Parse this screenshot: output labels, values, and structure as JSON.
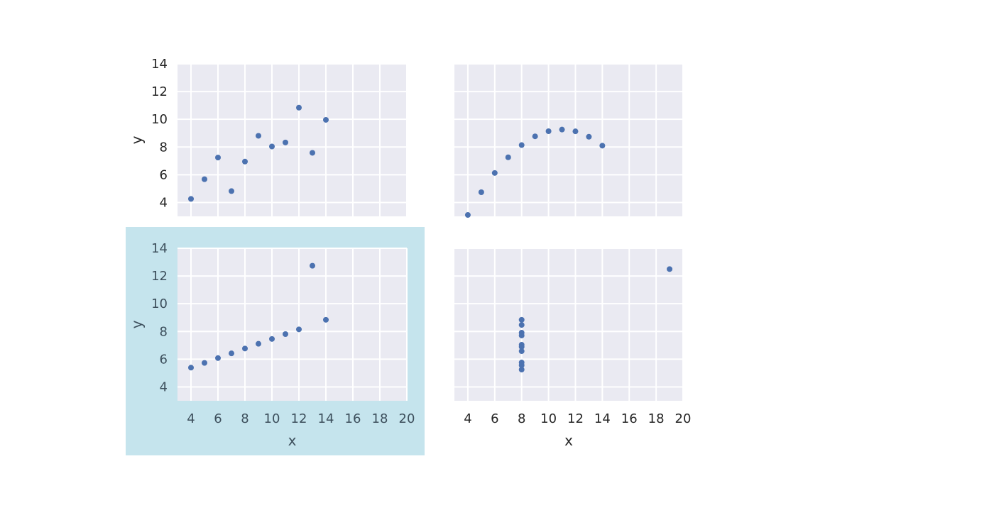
{
  "chart_data": [
    {
      "type": "scatter",
      "panel": "top-left",
      "xlabel": "",
      "ylabel": "y",
      "xlim": [
        3,
        20
      ],
      "ylim": [
        3,
        14
      ],
      "x_ticks": [],
      "y_ticks": [
        4,
        6,
        8,
        10,
        12,
        14
      ],
      "grid": true,
      "selected": false,
      "points": {
        "x": [
          4,
          5,
          6,
          7,
          8,
          9,
          10,
          11,
          12,
          13,
          14
        ],
        "y": [
          4.26,
          5.68,
          7.24,
          4.82,
          6.95,
          8.81,
          8.04,
          8.33,
          10.84,
          7.58,
          9.96
        ]
      }
    },
    {
      "type": "scatter",
      "panel": "top-right",
      "xlabel": "",
      "ylabel": "",
      "xlim": [
        3,
        20
      ],
      "ylim": [
        3,
        14
      ],
      "x_ticks": [],
      "y_ticks": [],
      "grid": true,
      "selected": false,
      "points": {
        "x": [
          4,
          5,
          6,
          7,
          8,
          9,
          10,
          11,
          12,
          13,
          14
        ],
        "y": [
          3.1,
          4.74,
          6.13,
          7.26,
          8.14,
          8.77,
          9.14,
          9.26,
          9.13,
          8.74,
          8.1
        ]
      }
    },
    {
      "type": "scatter",
      "panel": "bottom-left",
      "xlabel": "x",
      "ylabel": "y",
      "xlim": [
        3,
        20
      ],
      "ylim": [
        3,
        14
      ],
      "x_ticks": [
        4,
        6,
        8,
        10,
        12,
        14,
        16,
        18,
        20
      ],
      "y_ticks": [
        4,
        6,
        8,
        10,
        12,
        14
      ],
      "grid": true,
      "selected": true,
      "points": {
        "x": [
          4,
          5,
          6,
          7,
          8,
          9,
          10,
          11,
          12,
          13,
          14
        ],
        "y": [
          5.39,
          5.73,
          6.08,
          6.42,
          6.77,
          7.11,
          7.46,
          7.81,
          8.15,
          12.74,
          8.84
        ]
      }
    },
    {
      "type": "scatter",
      "panel": "bottom-right",
      "xlabel": "x",
      "ylabel": "",
      "xlim": [
        3,
        20
      ],
      "ylim": [
        3,
        14
      ],
      "x_ticks": [
        4,
        6,
        8,
        10,
        12,
        14,
        16,
        18,
        20
      ],
      "y_ticks": [],
      "grid": true,
      "selected": false,
      "points": {
        "x": [
          8,
          8,
          8,
          8,
          8,
          8,
          8,
          19,
          8,
          8,
          8
        ],
        "y": [
          6.58,
          5.76,
          7.71,
          8.84,
          8.47,
          7.04,
          5.25,
          12.5,
          5.56,
          7.91,
          6.89
        ]
      }
    }
  ],
  "colors": {
    "background": "#ffffff",
    "plot_area": "#eaeaf2",
    "grid": "#ffffff",
    "marker": "#4c72b0",
    "selection_overlay": "#add8e6"
  }
}
